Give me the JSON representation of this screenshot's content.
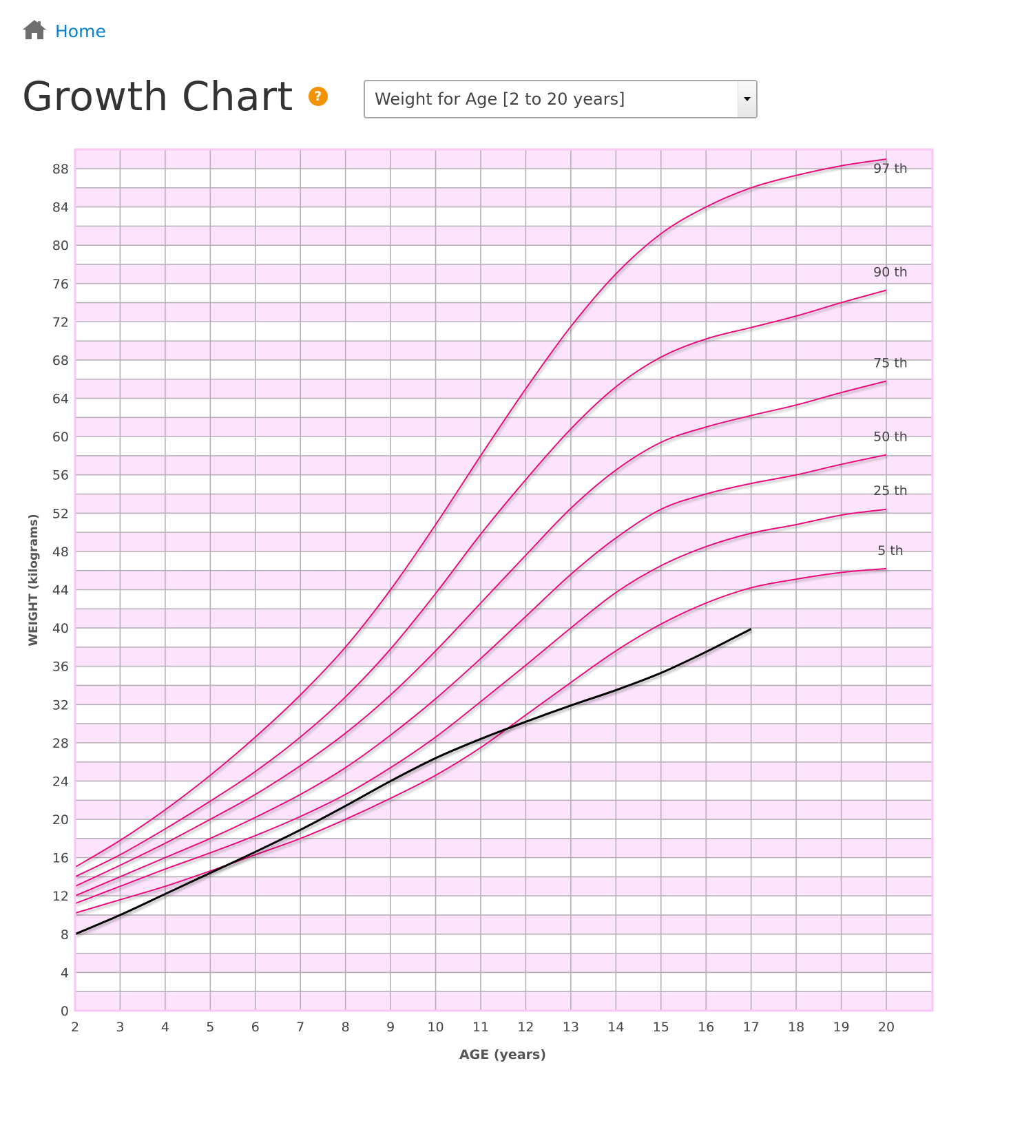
{
  "breadcrumb": {
    "home_label": "Home",
    "icon": "home-icon"
  },
  "header": {
    "title": "Growth Chart",
    "help_icon": "question-circle-icon"
  },
  "chart_selector": {
    "selected": "Weight for Age [2 to 20 years]",
    "icon": "chevron-down-icon"
  },
  "colors": {
    "percentile_line": "#e8097a",
    "patient_line": "#000000",
    "band": "#fde4fc",
    "border": "#f9c6f6",
    "grid": "#b8b0b8",
    "link": "#0a7fc9",
    "help": "#f39200"
  },
  "chart_data": {
    "type": "line",
    "title": "Weight for Age [2 to 20 years]",
    "xlabel": "AGE (years)",
    "ylabel": "WEIGHT (kilograms)",
    "xlim": [
      2,
      21
    ],
    "ylim": [
      0,
      90
    ],
    "x_ticks": [
      2,
      3,
      4,
      5,
      6,
      7,
      8,
      9,
      10,
      11,
      12,
      13,
      14,
      15,
      16,
      17,
      18,
      19,
      20
    ],
    "y_ticks": [
      0,
      4,
      8,
      12,
      16,
      20,
      24,
      28,
      32,
      36,
      40,
      44,
      48,
      52,
      56,
      60,
      64,
      68,
      72,
      76,
      80,
      84,
      88
    ],
    "grid": true,
    "x": [
      2,
      3,
      4,
      5,
      6,
      7,
      8,
      9,
      10,
      11,
      12,
      13,
      14,
      15,
      16,
      17,
      18,
      19,
      20
    ],
    "series": [
      {
        "name": "97 th",
        "label": "97 th",
        "values": [
          15,
          17.8,
          21,
          24.6,
          28.6,
          33,
          38,
          44,
          50.8,
          58,
          65,
          71.5,
          77,
          81.2,
          84,
          86,
          87.3,
          88.3,
          89
        ]
      },
      {
        "name": "90 th",
        "label": "90 th",
        "values": [
          14,
          16.3,
          19,
          21.9,
          25,
          28.6,
          32.8,
          37.8,
          43.6,
          49.8,
          55.5,
          60.8,
          65.2,
          68.3,
          70.2,
          71.4,
          72.6,
          74,
          75.3
        ]
      },
      {
        "name": "75 th",
        "label": "75 th",
        "values": [
          13,
          15.2,
          17.5,
          20,
          22.6,
          25.6,
          29,
          33,
          37.6,
          42.6,
          47.6,
          52.5,
          56.5,
          59.4,
          61,
          62.2,
          63.3,
          64.6,
          65.8
        ]
      },
      {
        "name": "50 th",
        "label": "50 th",
        "values": [
          12,
          14,
          16,
          18,
          20.2,
          22.6,
          25.4,
          28.8,
          32.6,
          36.8,
          41.2,
          45.6,
          49.4,
          52.4,
          54,
          55.1,
          56,
          57.1,
          58.1
        ]
      },
      {
        "name": "25 th",
        "label": "25 th",
        "values": [
          11.2,
          13,
          14.8,
          16.5,
          18.3,
          20.3,
          22.6,
          25.4,
          28.6,
          32.3,
          36.1,
          40,
          43.7,
          46.5,
          48.5,
          49.9,
          50.8,
          51.8,
          52.4
        ]
      },
      {
        "name": "5 th",
        "label": "5 th",
        "values": [
          10.2,
          11.6,
          13,
          14.6,
          16.3,
          18,
          20,
          22.2,
          24.6,
          27.5,
          30.9,
          34.3,
          37.6,
          40.4,
          42.6,
          44.2,
          45.1,
          45.8,
          46.2
        ]
      }
    ],
    "patient": {
      "name": "patient",
      "x": [
        2,
        3,
        4,
        5,
        6,
        7,
        8,
        9,
        10,
        11,
        12,
        13,
        14,
        15,
        16,
        17
      ],
      "values": [
        8,
        10,
        12.2,
        14.4,
        16.6,
        18.9,
        21.4,
        24,
        26.4,
        28.4,
        30.2,
        31.9,
        33.5,
        35.3,
        37.5,
        39.9
      ]
    }
  }
}
